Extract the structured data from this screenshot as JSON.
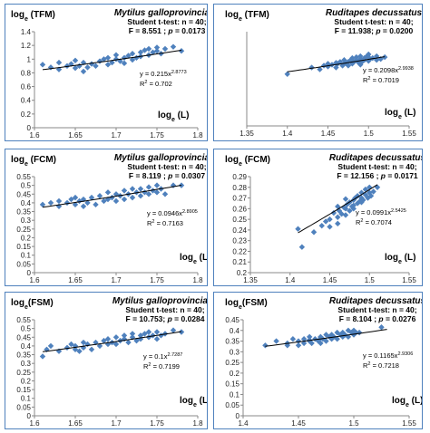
{
  "colors": {
    "border": "#4f81bd",
    "marker": "#4f81bd",
    "trend": "#000000",
    "axis": "#888888"
  },
  "chart_data": [
    {
      "type": "scatter",
      "species": "Mytilus galloprovincialis",
      "ylabel_base": "log",
      "ylabel_sub": "e",
      "ylabel_rest": " (TFM)",
      "xlabel_base": "log",
      "xlabel_sub": "e",
      "xlabel_rest": " (L)",
      "stats_line1": "Student t-test: n = 40;",
      "stats_f": "F = 8.551 ; ",
      "stats_p_label": "p",
      "stats_p_value": " = 0.0173",
      "eq_coef": "y = 0.215x",
      "eq_exp": "2.8773",
      "r2_label": "R",
      "r2_value": " = 0.702",
      "xlim": [
        1.6,
        1.8
      ],
      "ylim": [
        0,
        1.4
      ],
      "xticks": [
        "1.6",
        "1.65",
        "1.7",
        "1.75",
        "1.8"
      ],
      "yticks": [
        "0",
        "0.2",
        "0.4",
        "0.6",
        "0.8",
        "1",
        "1.2",
        "1.4"
      ],
      "trend": {
        "a": 0.215,
        "b": 2.8773,
        "x_range": [
          1.61,
          1.78
        ]
      },
      "x": [
        1.61,
        1.62,
        1.63,
        1.63,
        1.64,
        1.645,
        1.65,
        1.65,
        1.655,
        1.66,
        1.66,
        1.665,
        1.67,
        1.675,
        1.68,
        1.685,
        1.69,
        1.69,
        1.695,
        1.7,
        1.7,
        1.705,
        1.71,
        1.71,
        1.715,
        1.72,
        1.72,
        1.725,
        1.73,
        1.73,
        1.735,
        1.74,
        1.74,
        1.745,
        1.75,
        1.75,
        1.755,
        1.76,
        1.77,
        1.78
      ],
      "y": [
        0.92,
        0.88,
        0.95,
        0.85,
        0.9,
        0.93,
        0.87,
        0.98,
        0.9,
        0.82,
        0.95,
        0.88,
        0.93,
        0.9,
        0.97,
        1.0,
        0.92,
        1.02,
        0.95,
        1.0,
        1.06,
        0.97,
        1.02,
        0.94,
        1.05,
        0.99,
        1.08,
        1.02,
        1.1,
        1.04,
        1.13,
        1.06,
        1.15,
        1.1,
        1.12,
        1.17,
        1.08,
        1.15,
        1.18,
        1.12
      ]
    },
    {
      "type": "scatter",
      "species": "Ruditapes decussatus",
      "ylabel_base": "log",
      "ylabel_sub": "e",
      "ylabel_rest": " (TFM)",
      "xlabel_base": "log",
      "xlabel_sub": "e",
      "xlabel_rest": " (L)",
      "stats_line1": "Student t-test: n = 40;",
      "stats_f": "F = 11.938; ",
      "stats_p_label": "p",
      "stats_p_value": " = 0.0200",
      "eq_coef": "y = 0.2098x",
      "eq_exp": "2.9938",
      "r2_label": "R",
      "r2_value": " = 0.7019",
      "xlim": [
        1.35,
        1.55
      ],
      "ylim": [
        0,
        1.0
      ],
      "xticks": [
        "1.35",
        "1.4",
        "1.45",
        "1.5",
        "1.55"
      ],
      "yticks": [],
      "trend": {
        "a": 0.2098,
        "b": 2.9938,
        "x_range": [
          1.4,
          1.52
        ]
      },
      "x": [
        1.4,
        1.43,
        1.44,
        1.445,
        1.45,
        1.45,
        1.455,
        1.46,
        1.46,
        1.462,
        1.465,
        1.468,
        1.47,
        1.47,
        1.472,
        1.475,
        1.475,
        1.478,
        1.48,
        1.48,
        1.482,
        1.485,
        1.485,
        1.488,
        1.49,
        1.49,
        1.492,
        1.495,
        1.495,
        1.498,
        1.5,
        1.5,
        1.502,
        1.505,
        1.51,
        1.51,
        1.5,
        1.49,
        1.515,
        1.52
      ],
      "y": [
        0.55,
        0.62,
        0.6,
        0.64,
        0.66,
        0.63,
        0.65,
        0.67,
        0.62,
        0.66,
        0.68,
        0.64,
        0.66,
        0.7,
        0.67,
        0.68,
        0.64,
        0.7,
        0.66,
        0.72,
        0.68,
        0.7,
        0.73,
        0.67,
        0.71,
        0.74,
        0.68,
        0.72,
        0.7,
        0.74,
        0.73,
        0.69,
        0.71,
        0.72,
        0.7,
        0.74,
        0.76,
        0.65,
        0.71,
        0.73
      ]
    },
    {
      "type": "scatter",
      "species": "Mytilus galloprovincialis",
      "ylabel_base": "log",
      "ylabel_sub": "e",
      "ylabel_rest": " (FCM)",
      "xlabel_base": "log",
      "xlabel_sub": "e",
      "xlabel_rest": " (L)",
      "stats_line1": "Student t-test: n = 40;",
      "stats_f": "F = 8.119 ; ",
      "stats_p_label": "p",
      "stats_p_value": " = 0.0307",
      "eq_coef": "y = 0.0946x",
      "eq_exp": "2.8905",
      "r2_label": "R",
      "r2_value": " = 0.7163",
      "xlim": [
        1.6,
        1.8
      ],
      "ylim": [
        0,
        0.55
      ],
      "xticks": [
        "1.6",
        "1.65",
        "1.7",
        "1.75",
        "1.8"
      ],
      "yticks": [
        "0",
        "0.05",
        "0.1",
        "0.15",
        "0.2",
        "0.25",
        "0.3",
        "0.35",
        "0.4",
        "0.45",
        "0.5",
        "0.55"
      ],
      "trend": {
        "a": 0.0946,
        "b": 2.8905,
        "x_range": [
          1.61,
          1.78
        ]
      },
      "x": [
        1.61,
        1.62,
        1.63,
        1.63,
        1.64,
        1.645,
        1.65,
        1.65,
        1.655,
        1.66,
        1.66,
        1.665,
        1.67,
        1.675,
        1.68,
        1.685,
        1.69,
        1.69,
        1.695,
        1.7,
        1.7,
        1.705,
        1.71,
        1.71,
        1.715,
        1.72,
        1.72,
        1.725,
        1.73,
        1.73,
        1.735,
        1.74,
        1.74,
        1.745,
        1.75,
        1.75,
        1.755,
        1.76,
        1.77,
        1.78
      ],
      "y": [
        0.39,
        0.4,
        0.38,
        0.41,
        0.4,
        0.42,
        0.39,
        0.43,
        0.41,
        0.38,
        0.42,
        0.4,
        0.43,
        0.39,
        0.44,
        0.41,
        0.42,
        0.46,
        0.43,
        0.45,
        0.41,
        0.44,
        0.47,
        0.42,
        0.45,
        0.48,
        0.43,
        0.46,
        0.44,
        0.48,
        0.46,
        0.49,
        0.45,
        0.47,
        0.5,
        0.46,
        0.48,
        0.45,
        0.5,
        0.5
      ]
    },
    {
      "type": "scatter",
      "species": "Ruditapes decussatus",
      "ylabel_base": "log",
      "ylabel_sub": "e",
      "ylabel_rest": " (FCM)",
      "xlabel_base": "log",
      "xlabel_sub": "e",
      "xlabel_rest": " (L)",
      "stats_line1": "Student t-test: n = 40;",
      "stats_f": "F = 12.156 ; ",
      "stats_p_label": "p",
      "stats_p_value": " = 0.0171",
      "eq_coef": "y = 0.0991x",
      "eq_exp": "2.5425",
      "r2_label": "R",
      "r2_value": " = 0.7074",
      "xlim": [
        1.35,
        1.55
      ],
      "ylim": [
        0.2,
        0.29
      ],
      "xticks": [
        "1.35",
        "1.4",
        "1.45",
        "1.5",
        "1.55"
      ],
      "yticks": [
        "0.2",
        "0.21",
        "0.22",
        "0.23",
        "0.24",
        "0.25",
        "0.26",
        "0.27",
        "0.28",
        "0.29"
      ],
      "trend": {
        "a": 0.0991,
        "b": 2.5425,
        "x_range": [
          1.41,
          1.51
        ]
      },
      "x": [
        1.41,
        1.415,
        1.43,
        1.44,
        1.445,
        1.45,
        1.45,
        1.455,
        1.46,
        1.46,
        1.462,
        1.465,
        1.468,
        1.47,
        1.47,
        1.472,
        1.475,
        1.475,
        1.478,
        1.48,
        1.48,
        1.482,
        1.485,
        1.485,
        1.488,
        1.49,
        1.49,
        1.492,
        1.495,
        1.495,
        1.498,
        1.5,
        1.5,
        1.502,
        1.505,
        1.46,
        1.47,
        1.48,
        1.49,
        1.51
      ],
      "y": [
        0.241,
        0.224,
        0.238,
        0.244,
        0.248,
        0.25,
        0.243,
        0.256,
        0.252,
        0.246,
        0.258,
        0.255,
        0.261,
        0.254,
        0.26,
        0.264,
        0.258,
        0.266,
        0.262,
        0.268,
        0.26,
        0.27,
        0.265,
        0.272,
        0.267,
        0.27,
        0.275,
        0.268,
        0.273,
        0.278,
        0.27,
        0.275,
        0.28,
        0.272,
        0.276,
        0.262,
        0.269,
        0.263,
        0.266,
        0.28
      ]
    },
    {
      "type": "scatter",
      "species": "Mytilus galloprovincialis",
      "ylabel_base": "log",
      "ylabel_sub": "e",
      "ylabel_rest": "(FSM)",
      "xlabel_base": "log",
      "xlabel_sub": "e",
      "xlabel_rest": " (L)",
      "stats_line1": "Student t-test: n = 40;",
      "stats_f": "F = 10.753; ",
      "stats_p_label": "p",
      "stats_p_value": " = 0.0284",
      "eq_coef": "y = 0.1x",
      "eq_exp": "2.7287",
      "r2_label": "R",
      "r2_value": " = 0.7199",
      "xlim": [
        1.6,
        1.8
      ],
      "ylim": [
        0,
        0.55
      ],
      "xticks": [
        "1.6",
        "1.65",
        "1.7",
        "1.75",
        "1.8"
      ],
      "yticks": [
        "0",
        "0.05",
        "0.1",
        "0.15",
        "0.2",
        "0.25",
        "0.3",
        "0.35",
        "0.4",
        "0.45",
        "0.5",
        "0.55"
      ],
      "trend": {
        "a": 0.1,
        "b": 2.7287,
        "x_range": [
          1.61,
          1.78
        ]
      },
      "x": [
        1.61,
        1.615,
        1.62,
        1.63,
        1.64,
        1.645,
        1.65,
        1.65,
        1.655,
        1.66,
        1.66,
        1.665,
        1.67,
        1.675,
        1.68,
        1.685,
        1.69,
        1.69,
        1.695,
        1.7,
        1.7,
        1.705,
        1.71,
        1.71,
        1.715,
        1.72,
        1.72,
        1.725,
        1.73,
        1.73,
        1.735,
        1.74,
        1.74,
        1.745,
        1.75,
        1.75,
        1.755,
        1.76,
        1.77,
        1.78
      ],
      "y": [
        0.34,
        0.38,
        0.4,
        0.37,
        0.39,
        0.41,
        0.38,
        0.4,
        0.37,
        0.42,
        0.39,
        0.41,
        0.38,
        0.42,
        0.4,
        0.43,
        0.41,
        0.44,
        0.42,
        0.45,
        0.41,
        0.43,
        0.44,
        0.46,
        0.42,
        0.45,
        0.47,
        0.43,
        0.46,
        0.44,
        0.47,
        0.45,
        0.48,
        0.46,
        0.44,
        0.48,
        0.46,
        0.47,
        0.49,
        0.48
      ]
    },
    {
      "type": "scatter",
      "species": "Ruditapes decussatus",
      "ylabel_base": "log",
      "ylabel_sub": "e",
      "ylabel_rest": "(FSM)",
      "xlabel_base": "log",
      "xlabel_sub": "e",
      "xlabel_rest": " (L)",
      "stats_line1": "Student t-test: n = 40;",
      "stats_f": "F = 8.104 ; ",
      "stats_p_label": "p",
      "stats_p_value": " = 0.0276",
      "eq_coef": "y = 0.1165x",
      "eq_exp": "2.9306",
      "r2_label": "R",
      "r2_value": " = 0.7218",
      "xlim": [
        1.4,
        1.55
      ],
      "ylim": [
        0,
        0.45
      ],
      "xticks": [
        "1.4",
        "1.45",
        "1.5",
        "1.55"
      ],
      "yticks": [
        "0",
        "0.05",
        "0.1",
        "0.15",
        "0.2",
        "0.25",
        "0.3",
        "0.35",
        "0.4",
        "0.45"
      ],
      "trend": {
        "a": 0.1165,
        "b": 2.9306,
        "x_range": [
          1.42,
          1.53
        ]
      },
      "x": [
        1.42,
        1.43,
        1.44,
        1.44,
        1.445,
        1.45,
        1.45,
        1.455,
        1.455,
        1.46,
        1.46,
        1.462,
        1.465,
        1.468,
        1.47,
        1.47,
        1.472,
        1.475,
        1.475,
        1.478,
        1.48,
        1.48,
        1.482,
        1.485,
        1.485,
        1.488,
        1.49,
        1.49,
        1.492,
        1.495,
        1.495,
        1.498,
        1.5,
        1.5,
        1.502,
        1.505,
        1.46,
        1.47,
        1.48,
        1.525
      ],
      "y": [
        0.33,
        0.35,
        0.33,
        0.34,
        0.36,
        0.33,
        0.35,
        0.34,
        0.36,
        0.35,
        0.37,
        0.34,
        0.36,
        0.35,
        0.37,
        0.34,
        0.36,
        0.38,
        0.35,
        0.37,
        0.36,
        0.38,
        0.37,
        0.39,
        0.36,
        0.38,
        0.37,
        0.39,
        0.38,
        0.4,
        0.37,
        0.39,
        0.38,
        0.4,
        0.39,
        0.39,
        0.355,
        0.365,
        0.375,
        0.415
      ]
    }
  ]
}
